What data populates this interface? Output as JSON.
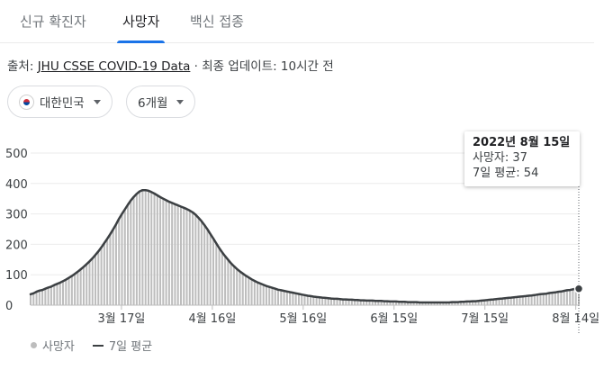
{
  "tabs": [
    {
      "label": "신규 확진자",
      "active": false
    },
    {
      "label": "사망자",
      "active": true
    },
    {
      "label": "백신 접종",
      "active": false
    }
  ],
  "source": {
    "prefix": "출처: ",
    "link": "JHU CSSE COVID-19 Data",
    "suffix": " · 최종 업데이트: 10시간 전"
  },
  "filters": {
    "region": "대한민국",
    "period": "6개월"
  },
  "tooltip": {
    "date": "2022년 8월 15일",
    "deaths": "사망자: 37",
    "avg": "7일 평균: 54"
  },
  "legend": {
    "bars": "사망자",
    "line": "7일 평균"
  },
  "colors": {
    "bar": "#bdbdbd",
    "line": "#3c4043",
    "accent": "#1a73e8"
  },
  "chart_data": {
    "type": "bar",
    "title": "",
    "xlabel": "",
    "ylabel": "",
    "ylim": [
      0,
      500
    ],
    "yticks": [
      0,
      100,
      200,
      300,
      400,
      500
    ],
    "ytick_labels": [
      "0",
      "100",
      "200",
      "300",
      "400",
      "500"
    ],
    "x_start": "2022-02-15",
    "x_end": "2022-08-15",
    "xticks": [
      "2022-03-17",
      "2022-04-16",
      "2022-05-16",
      "2022-06-15",
      "2022-07-15",
      "2022-08-14"
    ],
    "xtick_labels": [
      "3월 17일",
      "4월 16일",
      "5월 16일",
      "6월 15일",
      "7월 15일",
      "8월 14일"
    ],
    "grid": true,
    "series": [
      {
        "name": "사망자",
        "type": "bar",
        "values": [
          36,
          39,
          44,
          48,
          50,
          54,
          58,
          61,
          66,
          70,
          74,
          79,
          84,
          90,
          96,
          103,
          110,
          118,
          126,
          135,
          144,
          154,
          165,
          177,
          190,
          204,
          218,
          233,
          249,
          266,
          284,
          300,
          315,
          330,
          344,
          356,
          366,
          374,
          378,
          378,
          376,
          372,
          367,
          361,
          355,
          350,
          345,
          340,
          336,
          332,
          328,
          324,
          320,
          316,
          311,
          305,
          297,
          287,
          276,
          263,
          249,
          234,
          219,
          203,
          188,
          174,
          161,
          149,
          138,
          128,
          119,
          111,
          104,
          97,
          91,
          85,
          80,
          75,
          71,
          67,
          63,
          60,
          57,
          54,
          51,
          49,
          47,
          45,
          43,
          41,
          39,
          37,
          35,
          33,
          31,
          30,
          28,
          27,
          26,
          25,
          24,
          23,
          22,
          21,
          21,
          20,
          19,
          19,
          18,
          18,
          17,
          17,
          16,
          16,
          15,
          15,
          15,
          14,
          14,
          14,
          13,
          13,
          12,
          12,
          12,
          11,
          11,
          11,
          10,
          10,
          10,
          10,
          9,
          9,
          9,
          9,
          9,
          9,
          9,
          9,
          9,
          9,
          9,
          10,
          10,
          10,
          11,
          11,
          12,
          12,
          13,
          13,
          14,
          15,
          16,
          17,
          18,
          19,
          20,
          21,
          22,
          23,
          24,
          25,
          26,
          27,
          28,
          29,
          30,
          31,
          32,
          33,
          35,
          36,
          37,
          38,
          40,
          41,
          42,
          44,
          45,
          47,
          49,
          50,
          52,
          54,
          37
        ]
      },
      {
        "name": "7일 평균",
        "type": "line",
        "values": [
          36,
          39,
          44,
          48,
          50,
          54,
          58,
          61,
          66,
          70,
          74,
          79,
          84,
          90,
          96,
          103,
          110,
          118,
          126,
          135,
          144,
          154,
          165,
          177,
          190,
          204,
          218,
          233,
          249,
          266,
          284,
          300,
          315,
          330,
          344,
          356,
          366,
          374,
          378,
          378,
          376,
          372,
          367,
          361,
          355,
          350,
          345,
          340,
          336,
          332,
          328,
          324,
          320,
          316,
          311,
          305,
          297,
          287,
          276,
          263,
          249,
          234,
          219,
          203,
          188,
          174,
          161,
          149,
          138,
          128,
          119,
          111,
          104,
          97,
          91,
          85,
          80,
          75,
          71,
          67,
          63,
          60,
          57,
          54,
          51,
          49,
          47,
          45,
          43,
          41,
          39,
          37,
          35,
          33,
          31,
          30,
          28,
          27,
          26,
          25,
          24,
          23,
          22,
          21,
          21,
          20,
          19,
          19,
          18,
          18,
          17,
          17,
          16,
          16,
          15,
          15,
          15,
          14,
          14,
          14,
          13,
          13,
          12,
          12,
          12,
          11,
          11,
          11,
          10,
          10,
          10,
          10,
          9,
          9,
          9,
          9,
          9,
          9,
          9,
          9,
          9,
          9,
          9,
          10,
          10,
          10,
          11,
          11,
          12,
          12,
          13,
          13,
          14,
          15,
          16,
          17,
          18,
          19,
          20,
          21,
          22,
          23,
          24,
          25,
          26,
          27,
          28,
          29,
          30,
          31,
          32,
          33,
          35,
          36,
          37,
          38,
          40,
          41,
          42,
          44,
          45,
          47,
          49,
          50,
          52,
          54,
          54
        ]
      }
    ]
  }
}
